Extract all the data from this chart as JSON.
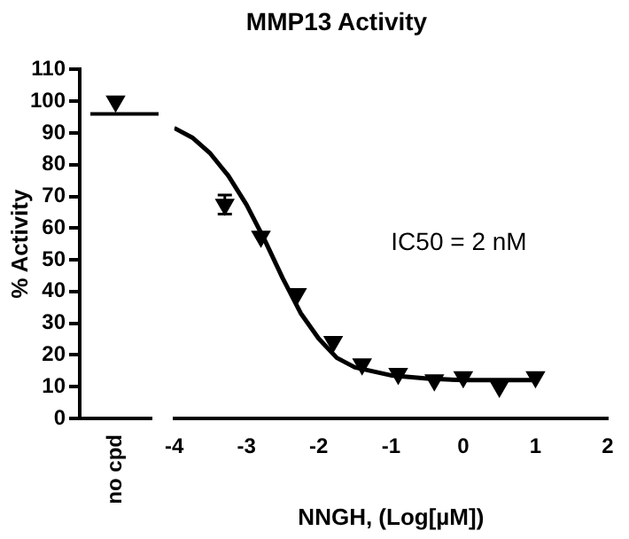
{
  "chart_data": [
    {
      "type": "scatter",
      "ylabel": "% Activity",
      "categories": [
        "no cpd"
      ],
      "values": [
        100
      ],
      "color": "#000000",
      "marker": "triangle",
      "ylim": [
        0,
        110
      ],
      "yticks": [
        0,
        10,
        20,
        30,
        40,
        50,
        60,
        70,
        80,
        90,
        100,
        110
      ],
      "ref_lines": [
        {
          "axis": "y",
          "value": 96,
          "color": "#000000"
        }
      ]
    },
    {
      "type": "scatter",
      "title": "MMP13 Activity",
      "xlabel": "NNGH, (Log[µM])",
      "xlim": [
        -4,
        2
      ],
      "xticks": [
        -4,
        -3,
        -2,
        -1,
        0,
        1,
        2
      ],
      "ylim": [
        0,
        110
      ],
      "tick_labels": "x",
      "marker": "triangle",
      "annotations": [
        "IC50 = 2 nM"
      ],
      "series": [
        {
          "type": "scatter",
          "color": "#000000",
          "x": [
            -3.3,
            -2.8,
            -2.3,
            -1.8,
            -1.4,
            -0.9,
            -0.4,
            0.0,
            0.5,
            1.0
          ],
          "values": [
            67,
            57,
            39,
            24,
            17,
            14,
            12,
            13,
            10,
            13
          ],
          "errors": [
            3,
            null,
            null,
            null,
            null,
            null,
            null,
            null,
            null,
            null
          ]
        },
        {
          "type": "line",
          "color": "#000000",
          "marker": "none",
          "x": [
            -4,
            -3.75,
            -3.5,
            -3.25,
            -3,
            -2.75,
            -2.5,
            -2.25,
            -2,
            -1.75,
            -1.5,
            -1,
            -0.5,
            0,
            0.5,
            1
          ],
          "values": [
            91,
            88,
            83,
            76,
            67,
            56,
            44,
            33,
            25,
            19,
            16,
            13.5,
            12.5,
            12,
            12,
            12
          ]
        }
      ]
    }
  ]
}
